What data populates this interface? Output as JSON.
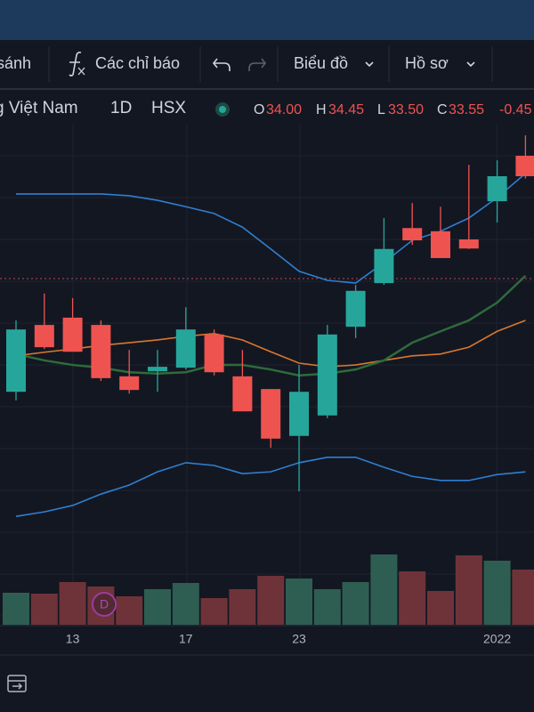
{
  "toolbar": {
    "compare": "sánh",
    "indicators": "Các chỉ báo",
    "chart": "Biểu đồ",
    "profile": "Hồ sơ"
  },
  "legend": {
    "symbol": "g Việt Nam",
    "interval": "1D",
    "exchange": "HSX",
    "open_label": "O",
    "open": "34.00",
    "high_label": "H",
    "high": "34.45",
    "low_label": "L",
    "low": "33.50",
    "close_label": "C",
    "close": "33.55",
    "change": "-0.45"
  },
  "marker": "D",
  "chart_data": {
    "type": "candlestick",
    "categories": [
      null,
      null,
      "13",
      null,
      null,
      null,
      "17",
      null,
      null,
      null,
      "23",
      null,
      null,
      null,
      null,
      null,
      null,
      "2022",
      null
    ],
    "open": [
      28.81,
      30.28,
      30.44,
      30.28,
      29.15,
      29.26,
      29.34,
      30.07,
      29.15,
      28.87,
      27.84,
      28.29,
      30.24,
      31.2,
      32.41,
      32.34,
      32.16,
      33.0,
      34.0
    ],
    "high": [
      30.38,
      30.97,
      30.87,
      30.38,
      29.73,
      29.73,
      30.67,
      30.18,
      29.73,
      28.87,
      29.4,
      30.28,
      31.16,
      32.63,
      32.96,
      32.88,
      33.8,
      33.9,
      34.45
    ],
    "low": [
      28.62,
      29.75,
      29.69,
      29.05,
      28.77,
      28.81,
      29.3,
      29.17,
      28.38,
      27.58,
      26.62,
      28.23,
      29.99,
      31.16,
      32.04,
      31.75,
      31.95,
      32.53,
      33.5
    ],
    "close": [
      30.18,
      29.79,
      29.69,
      29.11,
      28.85,
      29.36,
      30.18,
      29.24,
      28.38,
      27.78,
      28.81,
      30.07,
      31.03,
      31.95,
      32.14,
      31.75,
      31.96,
      33.55,
      33.55
    ],
    "volume": [
      36,
      35,
      48,
      43,
      32,
      40,
      47,
      30,
      40,
      55,
      52,
      40,
      48,
      79,
      60,
      38,
      78,
      72,
      62
    ],
    "up_color": "#26a69a",
    "down_color": "#ef5350",
    "volume_up_color": "#2e5e52",
    "volume_down_color": "#6e3339",
    "lines": [
      {
        "color": "#2f7fd0",
        "values": [
          33.16,
          33.16,
          33.16,
          33.16,
          33.12,
          33.02,
          32.88,
          32.73,
          32.43,
          31.95,
          31.46,
          31.26,
          31.2,
          31.65,
          32.14,
          32.34,
          32.63,
          33.08,
          33.61
        ]
      },
      {
        "color": "#2f7fd0",
        "values": [
          26.07,
          26.17,
          26.31,
          26.56,
          26.76,
          27.05,
          27.25,
          27.19,
          27.01,
          27.05,
          27.25,
          27.37,
          27.37,
          27.15,
          26.95,
          26.86,
          26.86,
          26.99,
          27.05
        ]
      },
      {
        "color": "#d9772e",
        "values": [
          29.6,
          29.68,
          29.75,
          29.83,
          29.89,
          29.95,
          30.03,
          30.09,
          29.95,
          29.69,
          29.44,
          29.36,
          29.4,
          29.5,
          29.6,
          29.64,
          29.79,
          30.14,
          30.38
        ]
      },
      {
        "color": "#2e6b3a",
        "values": [
          29.64,
          29.5,
          29.4,
          29.34,
          29.24,
          29.21,
          29.24,
          29.4,
          29.4,
          29.3,
          29.17,
          29.21,
          29.3,
          29.5,
          29.89,
          30.14,
          30.38,
          30.77,
          31.36
        ]
      }
    ],
    "price_line": 31.3,
    "price_line_color": "#b84a4a"
  }
}
